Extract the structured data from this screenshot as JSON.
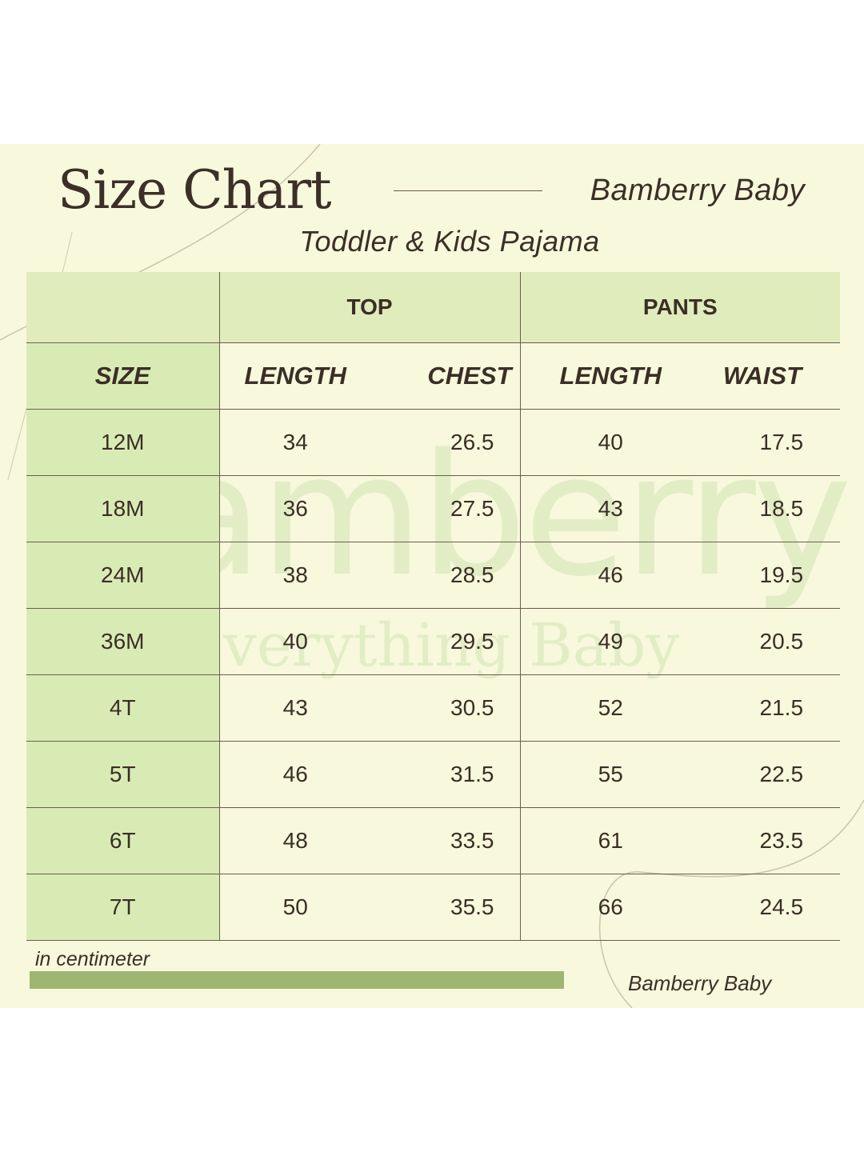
{
  "header": {
    "title": "Size Chart",
    "brand": "Bamberry Baby",
    "subtitle": "Toddler & Kids Pajama"
  },
  "watermark": {
    "main": "Bamberry",
    "sub": "Everything Baby"
  },
  "table": {
    "groups": {
      "top": "TOP",
      "pants": "PANTS"
    },
    "columns": [
      "SIZE",
      "LENGTH",
      "CHEST",
      "LENGTH",
      "WAIST"
    ],
    "rows": [
      [
        "12M",
        "34",
        "26.5",
        "40",
        "17.5"
      ],
      [
        "18M",
        "36",
        "27.5",
        "43",
        "18.5"
      ],
      [
        "24M",
        "38",
        "28.5",
        "46",
        "19.5"
      ],
      [
        "36M",
        "40",
        "29.5",
        "49",
        "20.5"
      ],
      [
        "4T",
        "43",
        "30.5",
        "52",
        "21.5"
      ],
      [
        "5T",
        "46",
        "31.5",
        "55",
        "22.5"
      ],
      [
        "6T",
        "48",
        "33.5",
        "61",
        "23.5"
      ],
      [
        "7T",
        "50",
        "35.5",
        "66",
        "24.5"
      ]
    ]
  },
  "footer": {
    "unit_note": "in centimeter",
    "brand": "Bamberry Baby"
  },
  "colors": {
    "background": "#f7f8dc",
    "header_band": "#e0ecbb",
    "size_column": "#d9ebb5",
    "accent_bar": "#9fb572",
    "text": "#3b2f27"
  }
}
